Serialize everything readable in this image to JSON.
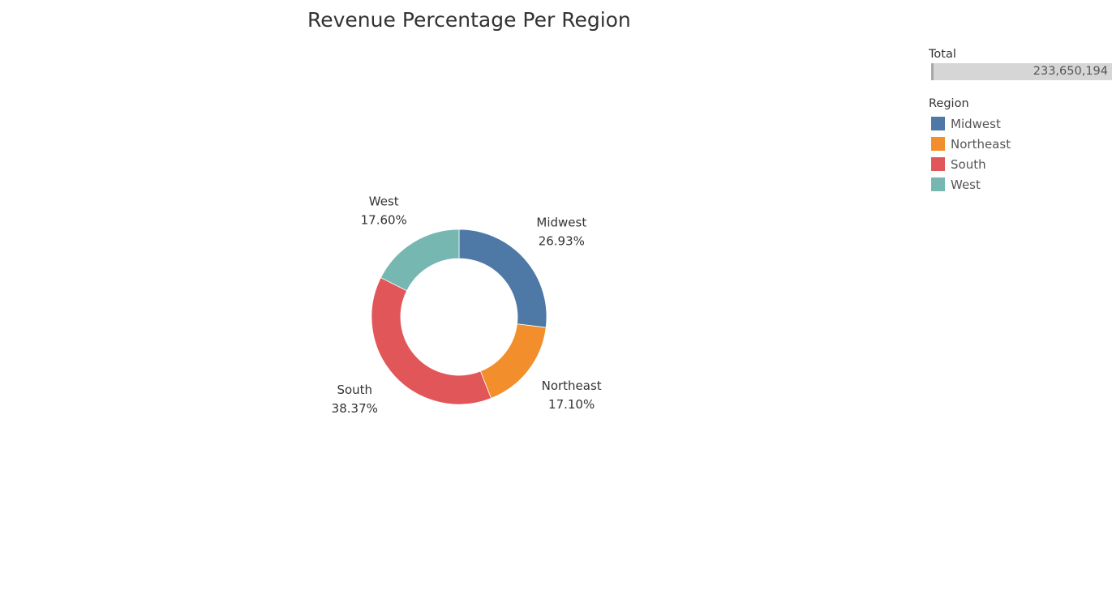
{
  "chart_data": {
    "type": "pie",
    "title": "Revenue Percentage Per Region",
    "donut": true,
    "slices": [
      {
        "label": "Midwest",
        "value": 26.93,
        "display": "26.93%",
        "color": "#4e79a7"
      },
      {
        "label": "Northeast",
        "value": 17.1,
        "display": "17.10%",
        "color": "#f28e2b"
      },
      {
        "label": "South",
        "value": 38.37,
        "display": "38.37%",
        "color": "#e15759"
      },
      {
        "label": "West",
        "value": 17.6,
        "display": "17.60%",
        "color": "#76b7b2"
      }
    ],
    "legend_position": "top-right"
  },
  "legend": {
    "total_heading": "Total",
    "total_value": "233,650,194",
    "total_bar_fill": 1.0,
    "region_heading": "Region",
    "items": [
      {
        "label": "Midwest",
        "color": "#4e79a7"
      },
      {
        "label": "Northeast",
        "color": "#f28e2b"
      },
      {
        "label": "South",
        "color": "#e15759"
      },
      {
        "label": "West",
        "color": "#76b7b2"
      }
    ]
  }
}
